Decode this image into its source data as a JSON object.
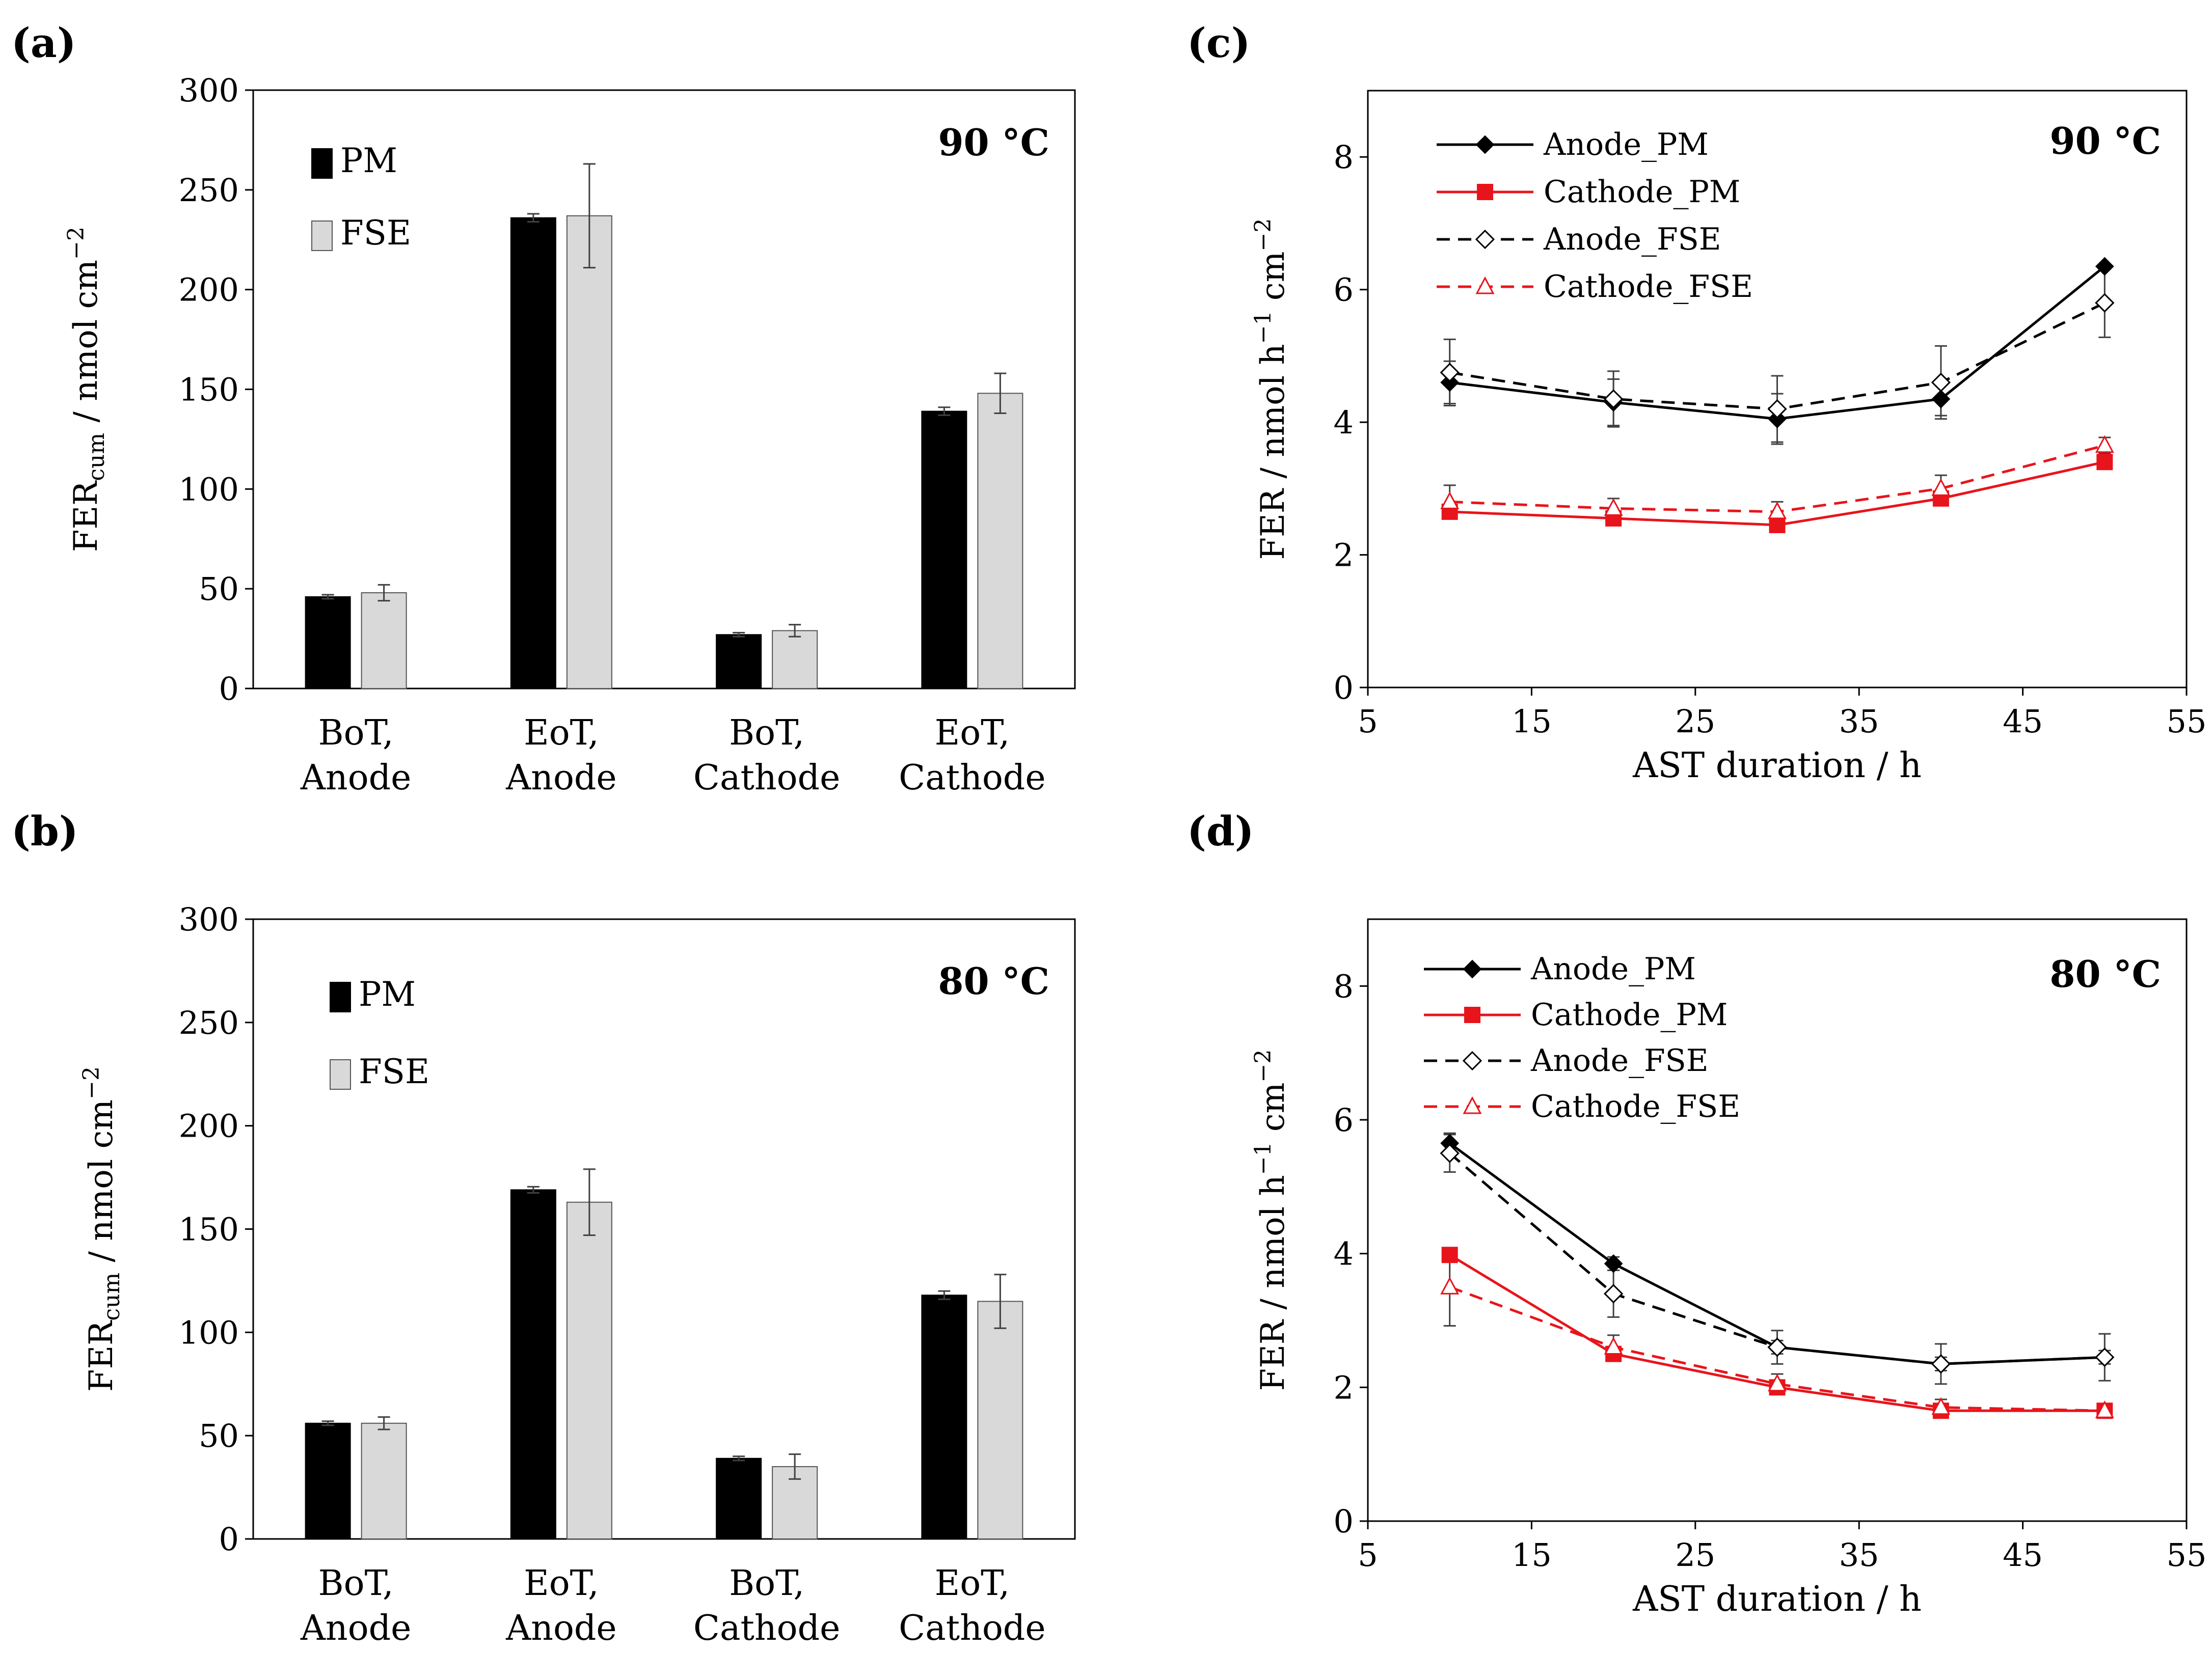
{
  "figure": {
    "caption_labels": [
      "(a)",
      "(b)",
      "(c)",
      "(d)"
    ]
  },
  "colors": {
    "pm_bar": "#000000",
    "fse_bar": "#d9d9d9",
    "fse_bar_stroke": "#555555",
    "anode_line": "#000000",
    "cathode_line": "#e8141b",
    "axis": "#000000",
    "error_bar": "#404040"
  },
  "chart_data": [
    {
      "id": "a",
      "type": "bar",
      "panel_label": "(a)",
      "annotation": "90 °C",
      "categories": [
        [
          "BoT,",
          "Anode"
        ],
        [
          "EoT,",
          "Anode"
        ],
        [
          "BoT,",
          "Cathode"
        ],
        [
          "EoT,",
          "Cathode"
        ]
      ],
      "series": [
        {
          "name": "PM",
          "values": [
            46,
            236,
            27,
            139
          ],
          "errors": [
            1,
            2,
            1,
            2
          ]
        },
        {
          "name": "FSE",
          "values": [
            48,
            237,
            29,
            148
          ],
          "errors": [
            4,
            26,
            3,
            10
          ]
        }
      ],
      "ylabel": {
        "main": "FER",
        "sub": "cum",
        "rest": " / nmol cm",
        "sup": "−2"
      },
      "ylim": [
        0,
        300
      ],
      "yticks": [
        0,
        50,
        100,
        150,
        200,
        250,
        300
      ],
      "legend_position": "top-left"
    },
    {
      "id": "b",
      "type": "bar",
      "panel_label": "(b)",
      "annotation": "80 °C",
      "categories": [
        [
          "BoT,",
          "Anode"
        ],
        [
          "EoT,",
          "Anode"
        ],
        [
          "BoT,",
          "Cathode"
        ],
        [
          "EoT,",
          "Cathode"
        ]
      ],
      "series": [
        {
          "name": "PM",
          "values": [
            56,
            169,
            39,
            118
          ],
          "errors": [
            1,
            1.5,
            1,
            2
          ]
        },
        {
          "name": "FSE",
          "values": [
            56,
            163,
            35,
            115
          ],
          "errors": [
            3,
            16,
            6,
            13
          ]
        }
      ],
      "ylabel": {
        "main": "FER",
        "sub": "cum",
        "rest": " / nmol cm",
        "sup": "−2"
      },
      "ylim": [
        0,
        300
      ],
      "yticks": [
        0,
        50,
        100,
        150,
        200,
        250,
        300
      ],
      "legend_position": "top-left"
    },
    {
      "id": "c",
      "type": "line",
      "panel_label": "(c)",
      "annotation": "90 °C",
      "x": [
        10,
        20,
        30,
        40,
        50
      ],
      "series": [
        {
          "name": "Anode_PM",
          "values": [
            4.6,
            4.3,
            4.05,
            4.35,
            6.35
          ],
          "errors": [
            0.32,
            0.35,
            0.38,
            0.25,
            0.0
          ],
          "color": "#000000",
          "dash": false,
          "marker": "diamond-filled"
        },
        {
          "name": "Cathode_PM",
          "values": [
            2.65,
            2.55,
            2.45,
            2.85,
            3.4
          ],
          "errors": [
            0.05,
            0.05,
            0.05,
            0.1,
            0.05
          ],
          "color": "#e8141b",
          "dash": false,
          "marker": "square-filled"
        },
        {
          "name": "Anode_FSE",
          "values": [
            4.75,
            4.35,
            4.2,
            4.6,
            5.8
          ],
          "errors": [
            0.5,
            0.42,
            0.5,
            0.55,
            0.52
          ],
          "color": "#000000",
          "dash": true,
          "marker": "diamond-open"
        },
        {
          "name": "Cathode_FSE",
          "values": [
            2.8,
            2.7,
            2.65,
            3.0,
            3.65
          ],
          "errors": [
            0.25,
            0.15,
            0.15,
            0.2,
            0.12
          ],
          "color": "#e8141b",
          "dash": true,
          "marker": "triangle-open"
        }
      ],
      "xlabel": "AST duration / h",
      "ylabel": {
        "main": "FER / nmol h",
        "sup1": "−1",
        "mid": " cm",
        "sup2": "−2"
      },
      "xlim": [
        5,
        55
      ],
      "xticks": [
        5,
        15,
        25,
        35,
        45,
        55
      ],
      "ylim": [
        0,
        9
      ],
      "yticks": [
        0,
        2,
        4,
        6,
        8
      ],
      "legend_position": "top-left"
    },
    {
      "id": "d",
      "type": "line",
      "panel_label": "(d)",
      "annotation": "80 °C",
      "x": [
        10,
        20,
        30,
        40,
        50
      ],
      "series": [
        {
          "name": "Anode_PM",
          "values": [
            5.65,
            3.85,
            2.6,
            2.35,
            2.45
          ],
          "errors": [
            0.15,
            0.1,
            0.1,
            0.1,
            0.1
          ],
          "color": "#000000",
          "dash": false,
          "marker": "diamond-filled"
        },
        {
          "name": "Cathode_PM",
          "values": [
            3.98,
            2.5,
            2.0,
            1.65,
            1.65
          ],
          "errors": [
            0.1,
            0.05,
            0.05,
            0.05,
            0.05
          ],
          "color": "#e8141b",
          "dash": false,
          "marker": "square-filled"
        },
        {
          "name": "Anode_FSE",
          "values": [
            5.5,
            3.4,
            2.6,
            2.35,
            2.45
          ],
          "errors": [
            0.28,
            0.35,
            0.25,
            0.3,
            0.35
          ],
          "color": "#000000",
          "dash": true,
          "marker": "diamond-open"
        },
        {
          "name": "Cathode_FSE",
          "values": [
            3.5,
            2.6,
            2.05,
            1.7,
            1.65
          ],
          "errors": [
            0.58,
            0.18,
            0.15,
            0.12,
            0.1
          ],
          "color": "#e8141b",
          "dash": true,
          "marker": "triangle-open"
        }
      ],
      "xlabel": "AST duration / h",
      "ylabel": {
        "main": "FER / nmol h",
        "sup1": "−1",
        "mid": " cm",
        "sup2": "−2"
      },
      "xlim": [
        5,
        55
      ],
      "xticks": [
        5,
        15,
        25,
        35,
        45,
        55
      ],
      "ylim": [
        0,
        9
      ],
      "yticks": [
        0,
        2,
        4,
        6,
        8
      ],
      "legend_position": "top-left"
    }
  ]
}
